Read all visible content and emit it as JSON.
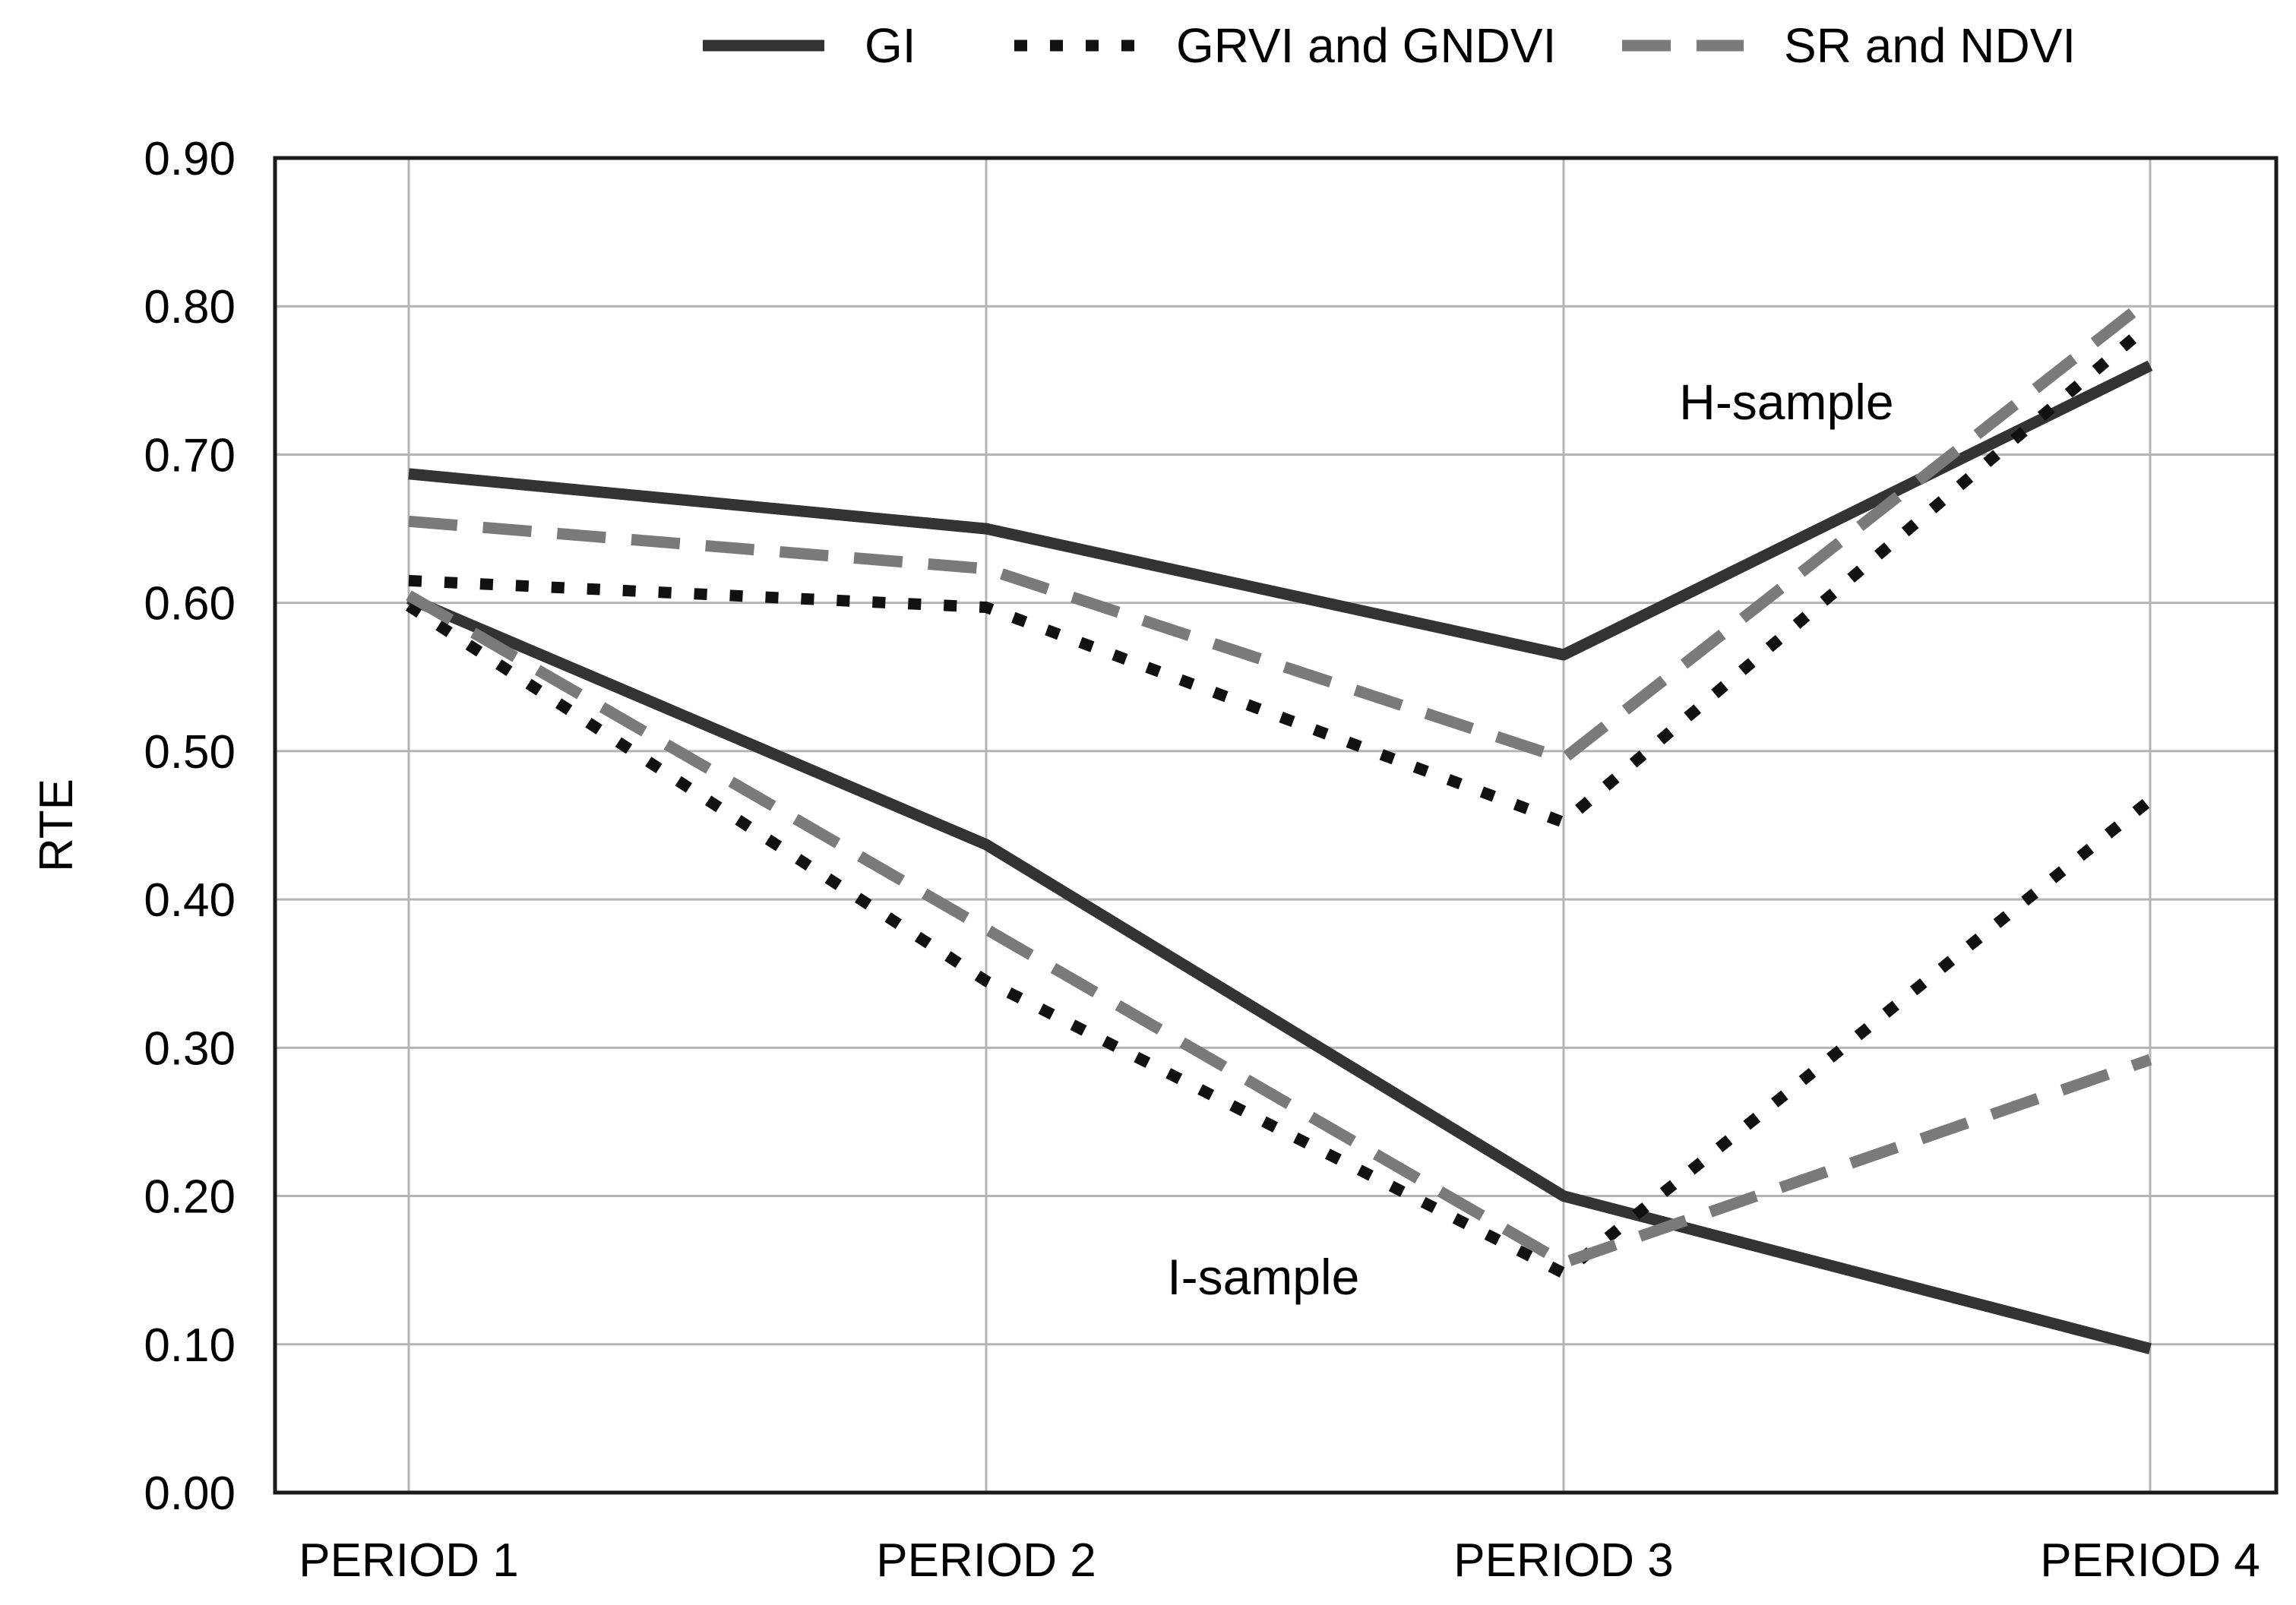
{
  "chart_data": {
    "type": "line",
    "ylabel": "RTE",
    "xlabel": "",
    "ylim": [
      0,
      0.9
    ],
    "yticks": [
      "0.00",
      "0.10",
      "0.20",
      "0.30",
      "0.40",
      "0.50",
      "0.60",
      "0.70",
      "0.80",
      "0.90"
    ],
    "categories": [
      "PERIOD 1",
      "PERIOD 2",
      "PERIOD 3",
      "PERIOD 4"
    ],
    "grid": true,
    "legend_position": "top",
    "legend": [
      {
        "label": "GI",
        "style": "solid",
        "color": "#333333"
      },
      {
        "label": "GRVI and GNDVI",
        "style": "dotted",
        "color": "#111111"
      },
      {
        "label": "SR and NDVI",
        "style": "dashed",
        "color": "#7a7a7a"
      }
    ],
    "series": [
      {
        "name": "GI",
        "group": "H-sample",
        "style": "solid",
        "color": "#333333",
        "values": [
          0.687,
          0.65,
          0.565,
          0.76
        ]
      },
      {
        "name": "GRVI and GNDVI",
        "group": "H-sample",
        "style": "dotted",
        "color": "#111111",
        "values": [
          0.615,
          0.597,
          0.452,
          0.788
        ]
      },
      {
        "name": "SR and NDVI",
        "group": "H-sample",
        "style": "dashed",
        "color": "#7a7a7a",
        "values": [
          0.655,
          0.623,
          0.495,
          0.805
        ]
      },
      {
        "name": "GI",
        "group": "I-sample",
        "style": "solid",
        "color": "#333333",
        "values": [
          0.603,
          0.437,
          0.2,
          0.097
        ]
      },
      {
        "name": "GRVI and GNDVI",
        "group": "I-sample",
        "style": "dotted",
        "color": "#111111",
        "values": [
          0.598,
          0.345,
          0.148,
          0.467
        ]
      },
      {
        "name": "SR and NDVI",
        "group": "I-sample",
        "style": "dashed",
        "color": "#7a7a7a",
        "values": [
          0.605,
          0.38,
          0.155,
          0.292
        ]
      }
    ],
    "annotations": [
      {
        "text": "H-sample",
        "x": 3.38,
        "y": 0.735
      },
      {
        "text": "I-sample",
        "x": 2.48,
        "y": 0.145
      }
    ]
  }
}
